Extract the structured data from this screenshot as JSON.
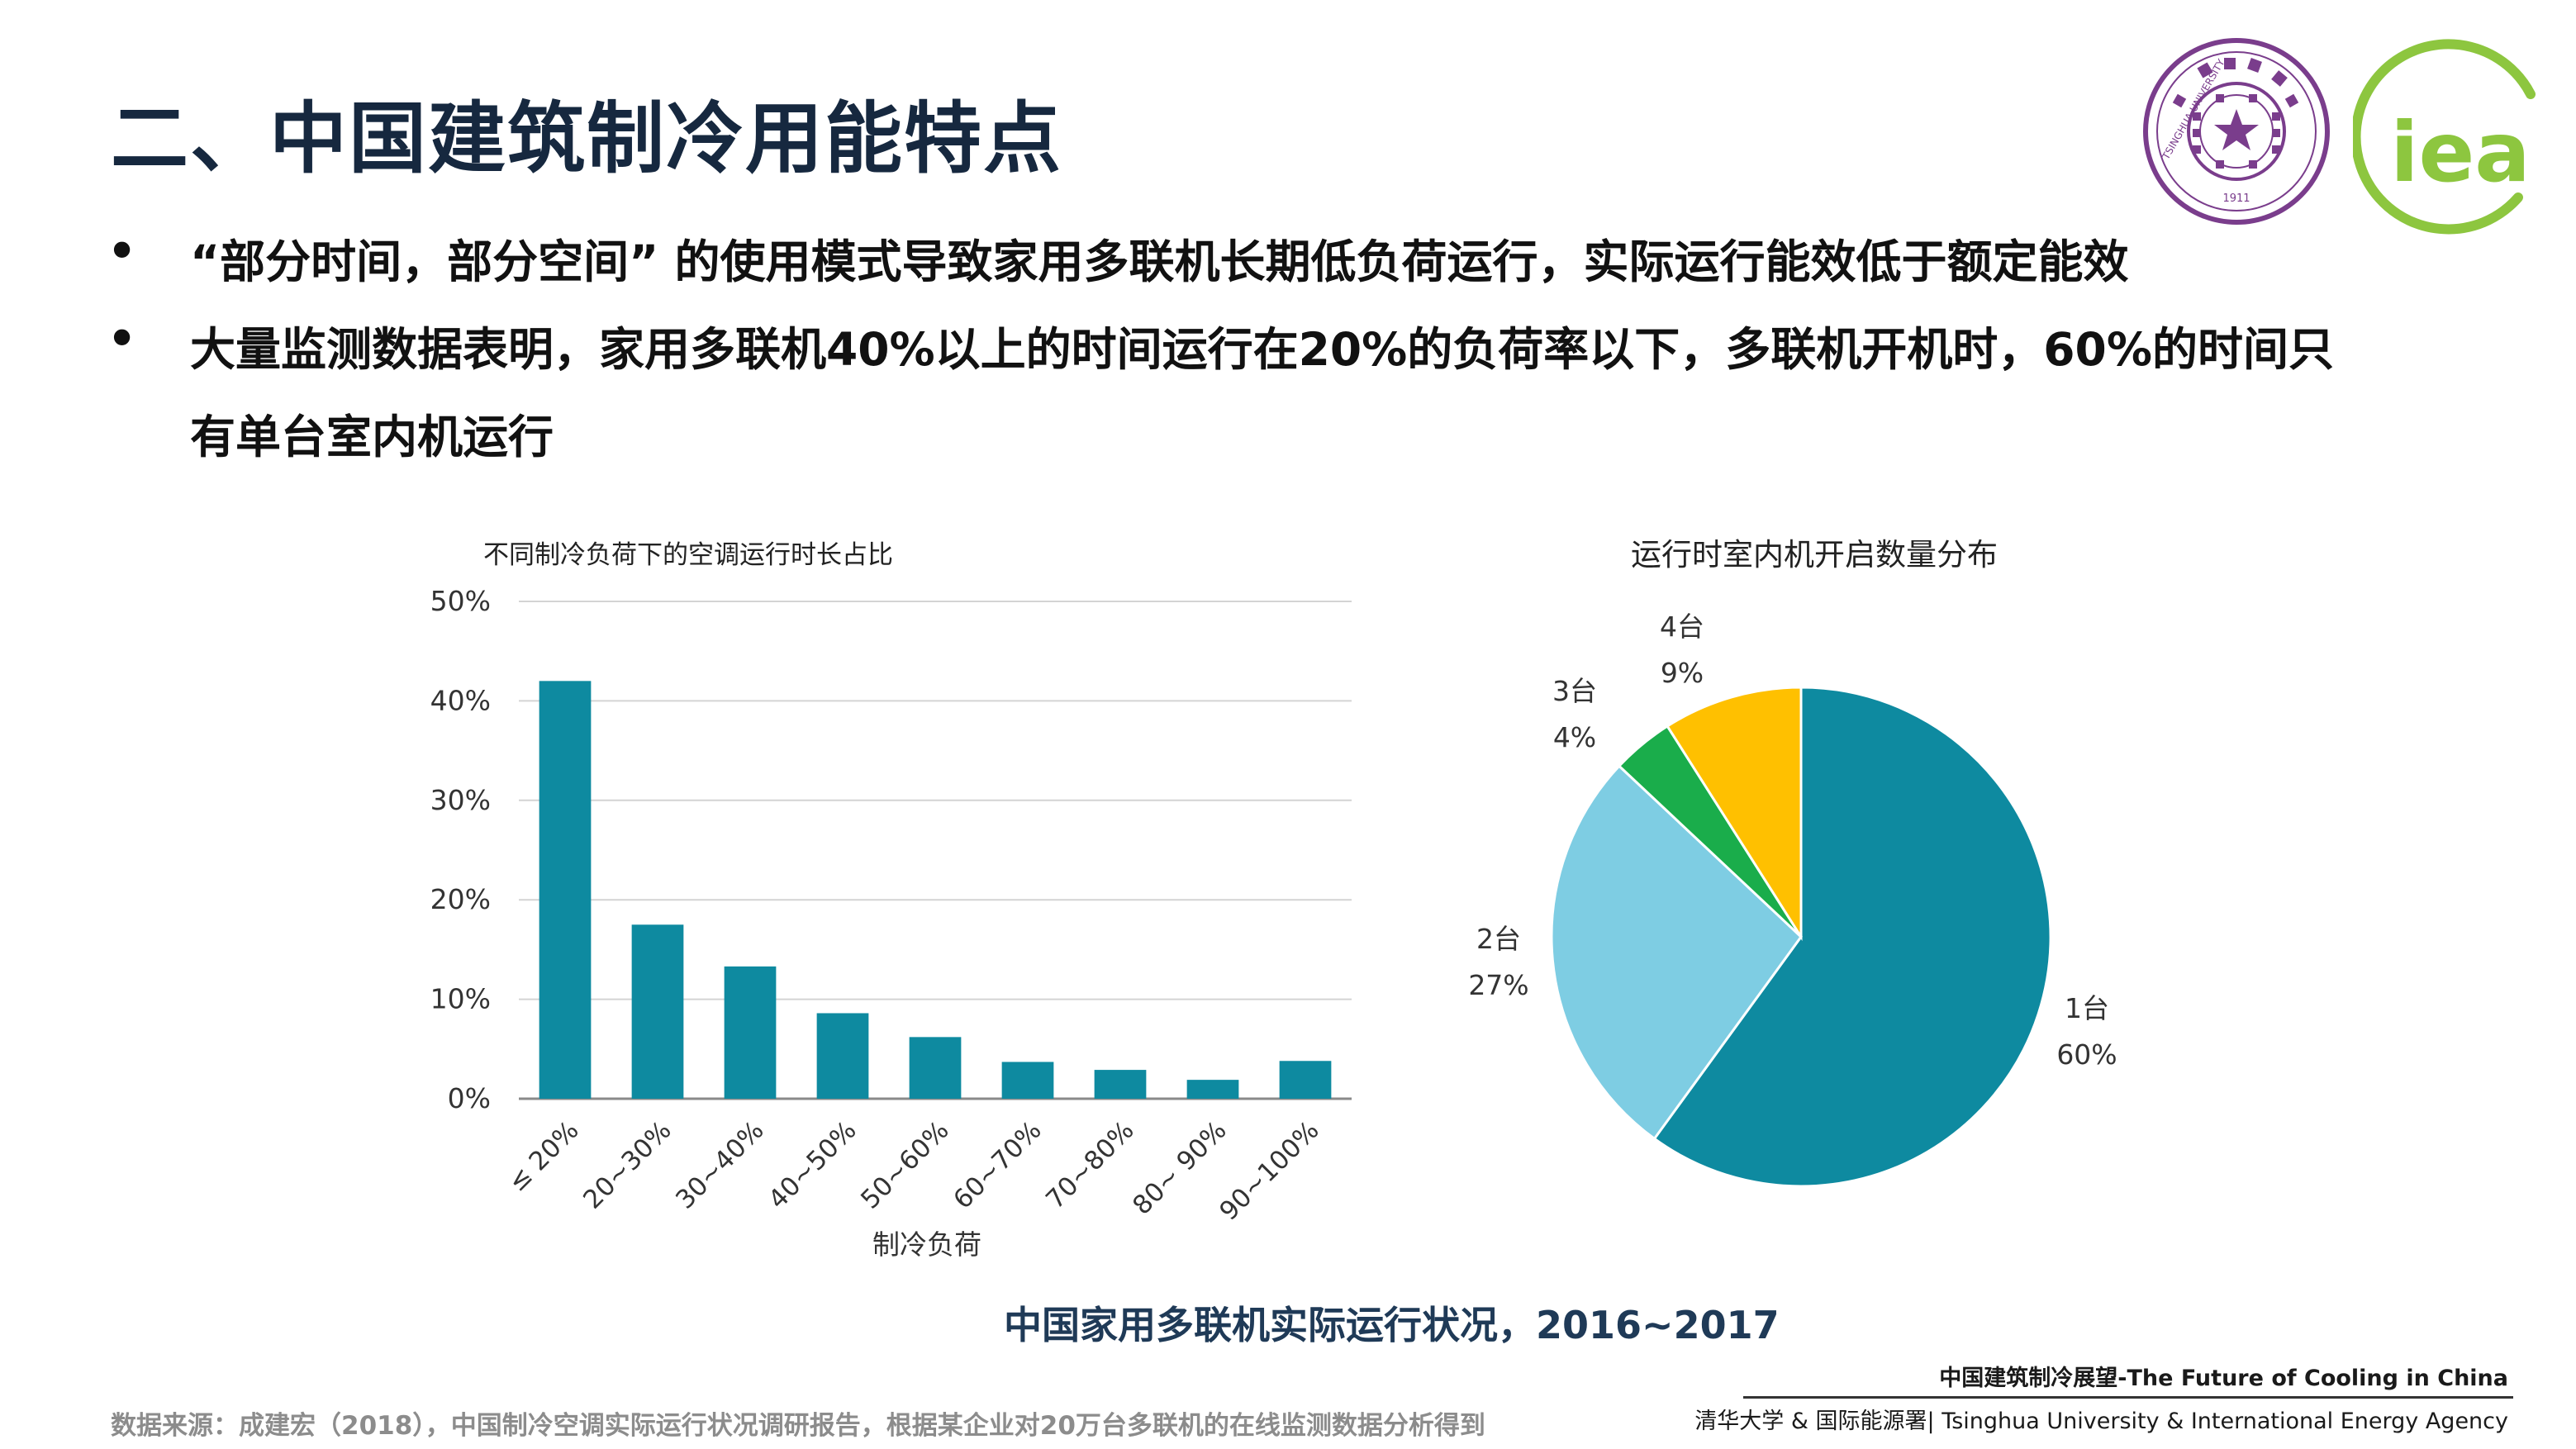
{
  "slide": {
    "title": "二、中国建筑制冷用能特点",
    "bullets": [
      {
        "marker": "•",
        "lines": [
          "“部分时间，部分空间” 的使用模式导致家用多联机长期低负荷运行，实际运行能效低于额定能效"
        ]
      },
      {
        "marker": "•",
        "lines": [
          "大量监测数据表明，家用多联机40%以上的时间运行在20%的负荷率以下，多联机开机时，60%的时间只",
          "有单台室内机运行"
        ]
      }
    ],
    "caption": "中国家用多联机实际运行状况，2016~2017",
    "source": "数据来源：成建宏（2018），中国制冷空调实际运行状况调研报告，根据某企业对20万台多联机的在线监测数据分析得到",
    "footer_title": "中国建筑制冷展望-The Future of Cooling in China",
    "footer_org": "清华大学 & 国际能源署| Tsinghua University & International Energy Agency"
  },
  "logos": {
    "tsinghua": {
      "ring_text": "TSINGHUA UNIVERSITY",
      "year": "1911",
      "color": "#7a3d8c"
    },
    "iea": {
      "text": "iea",
      "color": "#8dc63f"
    }
  },
  "chart_data": [
    {
      "type": "bar",
      "title": "不同制冷负荷下的空调运行时长占比",
      "xlabel": "制冷负荷",
      "ylabel": "",
      "categories": [
        "≤ 20%",
        "20~30%",
        "30~40%",
        "40~50%",
        "50~60%",
        "60~70%",
        "70~80%",
        "80~ 90%",
        "90~100%"
      ],
      "values": [
        42,
        17.5,
        13.3,
        8.6,
        6.2,
        3.7,
        2.9,
        1.9,
        3.8
      ],
      "ylim": [
        0,
        50
      ],
      "yticks": [
        "0%",
        "10%",
        "20%",
        "30%",
        "40%",
        "50%"
      ],
      "grid": true,
      "color": "#0e8aa0"
    },
    {
      "type": "pie",
      "title": "运行时室内机开启数量分布",
      "slices": [
        {
          "label": "1台",
          "value_label": "60%",
          "value": 60,
          "color": "#0e8aa0"
        },
        {
          "label": "2台",
          "value_label": "27%",
          "value": 27,
          "color": "#7ecde3"
        },
        {
          "label": "3台",
          "value_label": "4%",
          "value": 4,
          "color": "#1aad4b"
        },
        {
          "label": "4台",
          "value_label": "9%",
          "value": 9,
          "color": "#ffc000"
        }
      ]
    }
  ]
}
